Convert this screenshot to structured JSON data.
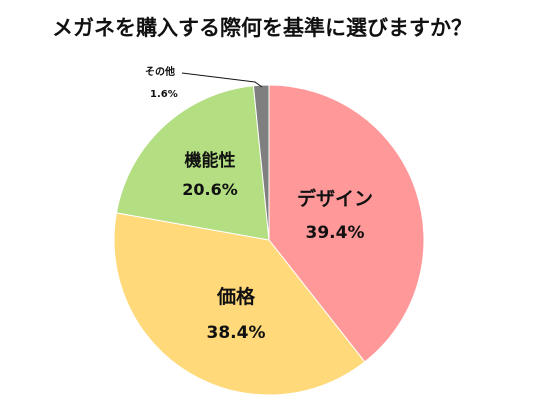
{
  "chart_data": {
    "type": "pie",
    "title": "メガネを購入する際何を基準に選びますか？",
    "categories": [
      "デザイン",
      "価格",
      "機能性",
      "その他"
    ],
    "values": [
      39.4,
      38.4,
      20.6,
      1.6
    ],
    "value_labels": [
      "39.4%",
      "38.4%",
      "20.6%",
      "1.6%"
    ],
    "colors": [
      "#FF9999",
      "#FFD97A",
      "#B3DE82",
      "#7F7F7F"
    ],
    "start_angle_deg": 0,
    "direction": "clockwise",
    "legend": "none",
    "data_labels": "inside",
    "small_slice_label": "outside-with-leader"
  }
}
